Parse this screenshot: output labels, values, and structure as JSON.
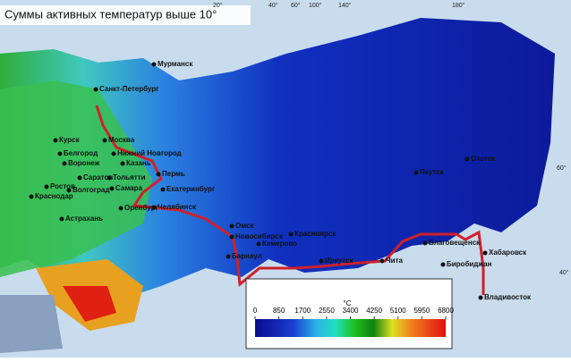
{
  "title": "Суммы активных температур выше 10°",
  "graticule": {
    "longitudes": [
      "20°",
      "40°",
      "60°",
      "100°",
      "140°",
      "180°"
    ],
    "latitudes": [
      "60°",
      "40°"
    ]
  },
  "cities": [
    "Мурманск",
    "Санкт-Петербург",
    "Курск",
    "Москва",
    "Белгород",
    "Нижний Новгород",
    "Воронеж",
    "Казань",
    "Саратов",
    "Тольятти",
    "Пермь",
    "Ростов",
    "Волгоград",
    "Самара",
    "Екатеринбург",
    "Краснодар",
    "Оренбург",
    "Челябинск",
    "Астрахань",
    "Омск",
    "Новосибирск",
    "Красноярск",
    "Кемерово",
    "Барнаул",
    "Иркутск",
    "Чита",
    "Якутск",
    "Охотск",
    "Благовещенск",
    "Биробиджан",
    "Хабаровск",
    "Владивосток"
  ],
  "legend": {
    "unit": "°C",
    "ticks": [
      0,
      850,
      1700,
      2550,
      3400,
      4250,
      5100,
      5950,
      6800
    ]
  }
}
